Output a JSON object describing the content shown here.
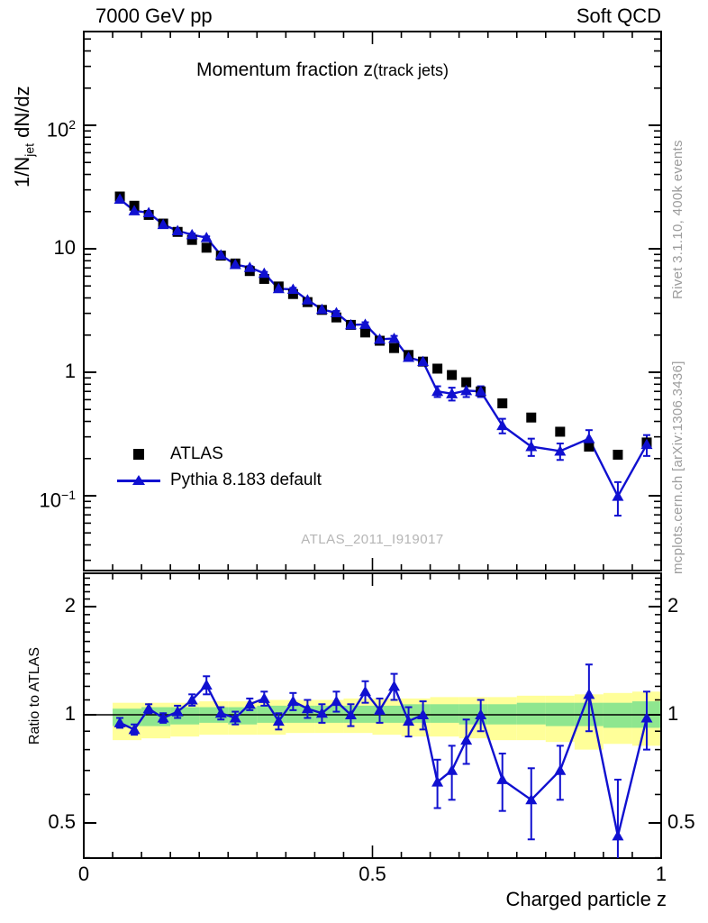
{
  "header": {
    "left": "7000 GeV pp",
    "right": "Soft QCD"
  },
  "title": {
    "main": "Momentum fraction z",
    "paren": "(track jets)"
  },
  "y_axis_label": {
    "prefix": "1/N",
    "sub": "jet",
    "suffix": " dN/dz"
  },
  "ratio_axis_label": "Ratio to ATLAS",
  "x_axis_label": "Charged particle z",
  "watermark": "ATLAS_2011_I919017",
  "side_notes": {
    "right_top": "Rivet 3.1.10,  400k events",
    "right_bottom": "mcplots.cern.ch [arXiv:1306.3436]"
  },
  "legend": {
    "entries": [
      {
        "label": "ATLAS",
        "marker": "black-square"
      },
      {
        "label": "Pythia 8.183 default",
        "marker": "blue-line-triangle"
      }
    ]
  },
  "colors": {
    "pythia_blue": "#1010d0",
    "atlas_black": "#000000",
    "band_yellow": "#ffff99",
    "band_green": "#8fe68f",
    "annotation_gray": "#9c9c9c",
    "watermark_gray": "#b5b5b5"
  },
  "axes": {
    "main_y_ticks": [
      {
        "base": "10",
        "sup": "2",
        "value": 100
      },
      {
        "base": "10",
        "sup": "",
        "value": 10
      },
      {
        "base": "1",
        "sup": "",
        "value": 1
      },
      {
        "base": "10",
        "sup": "−1",
        "value": 0.1
      }
    ],
    "ratio_y_ticks": [
      {
        "label": "2",
        "value": 2
      },
      {
        "label": "1",
        "value": 1
      },
      {
        "label": "0.5",
        "value": 0.5
      }
    ],
    "x_ticks": [
      {
        "label": "0",
        "value": 0
      },
      {
        "label": "0.5",
        "value": 0.5
      },
      {
        "label": "1",
        "value": 1
      }
    ]
  },
  "chart_data": {
    "type": "scatter",
    "title": "Momentum fraction z (track jets)",
    "xlabel": "Charged particle z",
    "ylabel": "1/N_jet dN/dz",
    "ratio_ylabel": "Ratio to ATLAS",
    "x_range": [
      0,
      1
    ],
    "main_y_log_range": [
      0.025,
      575
    ],
    "ratio_y_log_range": [
      0.4,
      2.45
    ],
    "x": [
      0.0625,
      0.0875,
      0.1125,
      0.1375,
      0.1625,
      0.1875,
      0.2125,
      0.2375,
      0.2625,
      0.2875,
      0.3125,
      0.3375,
      0.3625,
      0.3875,
      0.4125,
      0.4375,
      0.4625,
      0.4875,
      0.5125,
      0.5375,
      0.5625,
      0.5875,
      0.6125,
      0.6375,
      0.6625,
      0.6875,
      0.725,
      0.775,
      0.825,
      0.875,
      0.925,
      0.975
    ],
    "series": [
      {
        "name": "ATLAS",
        "marker": "square",
        "color": "#000000",
        "values": [
          26.5,
          22.3,
          18.8,
          16.0,
          13.7,
          11.8,
          10.2,
          8.8,
          7.6,
          6.6,
          5.7,
          4.95,
          4.3,
          3.7,
          3.2,
          2.78,
          2.42,
          2.1,
          1.8,
          1.57,
          1.38,
          1.22,
          1.07,
          0.95,
          0.83,
          0.7,
          0.56,
          0.43,
          0.33,
          0.25,
          0.215,
          0.27
        ]
      },
      {
        "name": "Pythia 8.183 default",
        "marker": "triangle",
        "color": "#1010d0",
        "values": [
          25.2,
          20.3,
          19.6,
          15.7,
          14.0,
          13.0,
          12.3,
          8.9,
          7.45,
          7.06,
          6.33,
          4.75,
          4.69,
          3.85,
          3.23,
          3.03,
          2.42,
          2.44,
          1.85,
          1.88,
          1.32,
          1.22,
          0.7,
          0.67,
          0.71,
          0.7,
          0.37,
          0.25,
          0.23,
          0.29,
          0.099,
          0.26
        ],
        "errors": [
          0.5,
          0.45,
          0.4,
          0.35,
          0.3,
          0.3,
          0.3,
          0.22,
          0.2,
          0.18,
          0.17,
          0.14,
          0.14,
          0.12,
          0.11,
          0.11,
          0.09,
          0.1,
          0.08,
          0.09,
          0.07,
          0.07,
          0.07,
          0.08,
          0.08,
          0.07,
          0.05,
          0.04,
          0.035,
          0.05,
          0.03,
          0.05
        ]
      }
    ],
    "ratio": {
      "name": "Pythia / ATLAS",
      "values": [
        0.95,
        0.91,
        1.04,
        0.98,
        1.02,
        1.1,
        1.21,
        1.01,
        0.98,
        1.07,
        1.11,
        0.96,
        1.09,
        1.04,
        1.01,
        1.09,
        1.0,
        1.16,
        1.03,
        1.2,
        0.96,
        1.0,
        0.65,
        0.7,
        0.85,
        1.0,
        0.66,
        0.58,
        0.7,
        1.14,
        0.46,
        0.98
      ],
      "errors": [
        0.03,
        0.03,
        0.03,
        0.03,
        0.04,
        0.04,
        0.07,
        0.04,
        0.04,
        0.04,
        0.05,
        0.05,
        0.06,
        0.06,
        0.06,
        0.07,
        0.07,
        0.08,
        0.08,
        0.1,
        0.09,
        0.09,
        0.1,
        0.12,
        0.12,
        0.1,
        0.12,
        0.13,
        0.12,
        0.24,
        0.2,
        0.18
      ]
    },
    "bands": [
      {
        "zlo": 0.05,
        "zhi": 0.1,
        "yellow": [
          0.85,
          1.08
        ],
        "green": [
          0.93,
          1.04
        ]
      },
      {
        "zlo": 0.1,
        "zhi": 0.15,
        "yellow": [
          0.86,
          1.08
        ],
        "green": [
          0.93,
          1.05
        ]
      },
      {
        "zlo": 0.15,
        "zhi": 0.2,
        "yellow": [
          0.87,
          1.08
        ],
        "green": [
          0.94,
          1.05
        ]
      },
      {
        "zlo": 0.2,
        "zhi": 0.25,
        "yellow": [
          0.88,
          1.09
        ],
        "green": [
          0.95,
          1.05
        ]
      },
      {
        "zlo": 0.25,
        "zhi": 0.3,
        "yellow": [
          0.88,
          1.09
        ],
        "green": [
          0.94,
          1.05
        ]
      },
      {
        "zlo": 0.3,
        "zhi": 0.35,
        "yellow": [
          0.88,
          1.1
        ],
        "green": [
          0.95,
          1.06
        ]
      },
      {
        "zlo": 0.35,
        "zhi": 0.4,
        "yellow": [
          0.89,
          1.1
        ],
        "green": [
          0.95,
          1.06
        ]
      },
      {
        "zlo": 0.4,
        "zhi": 0.45,
        "yellow": [
          0.89,
          1.1
        ],
        "green": [
          0.95,
          1.06
        ]
      },
      {
        "zlo": 0.45,
        "zhi": 0.5,
        "yellow": [
          0.89,
          1.11
        ],
        "green": [
          0.95,
          1.06
        ]
      },
      {
        "zlo": 0.5,
        "zhi": 0.55,
        "yellow": [
          0.88,
          1.11
        ],
        "green": [
          0.95,
          1.06
        ]
      },
      {
        "zlo": 0.55,
        "zhi": 0.6,
        "yellow": [
          0.87,
          1.11
        ],
        "green": [
          0.95,
          1.07
        ]
      },
      {
        "zlo": 0.6,
        "zhi": 0.65,
        "yellow": [
          0.87,
          1.12
        ],
        "green": [
          0.95,
          1.07
        ]
      },
      {
        "zlo": 0.65,
        "zhi": 0.7,
        "yellow": [
          0.86,
          1.12
        ],
        "green": [
          0.94,
          1.07
        ]
      },
      {
        "zlo": 0.7,
        "zhi": 0.75,
        "yellow": [
          0.85,
          1.12
        ],
        "green": [
          0.94,
          1.07
        ]
      },
      {
        "zlo": 0.75,
        "zhi": 0.8,
        "yellow": [
          0.85,
          1.13
        ],
        "green": [
          0.94,
          1.08
        ]
      },
      {
        "zlo": 0.8,
        "zhi": 0.85,
        "yellow": [
          0.84,
          1.13
        ],
        "green": [
          0.93,
          1.08
        ]
      },
      {
        "zlo": 0.85,
        "zhi": 0.9,
        "yellow": [
          0.8,
          1.14
        ],
        "green": [
          0.93,
          1.08
        ]
      },
      {
        "zlo": 0.9,
        "zhi": 0.95,
        "yellow": [
          0.83,
          1.15
        ],
        "green": [
          0.92,
          1.08
        ]
      },
      {
        "zlo": 0.95,
        "zhi": 1.0,
        "yellow": [
          0.82,
          1.16
        ],
        "green": [
          0.92,
          1.09
        ]
      }
    ]
  }
}
